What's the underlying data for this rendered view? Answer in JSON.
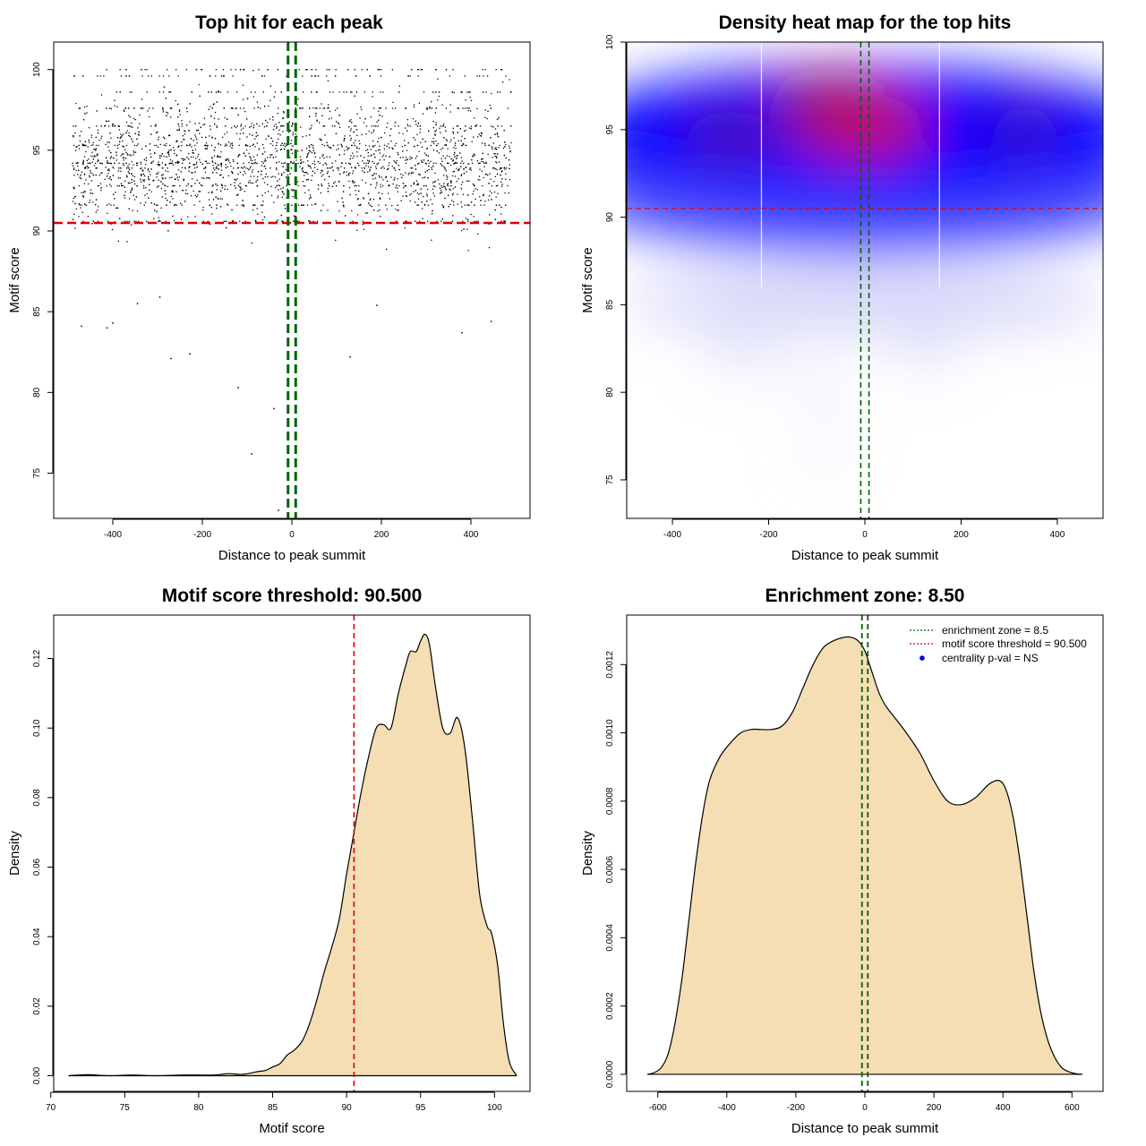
{
  "chart_data": [
    {
      "id": "scatter",
      "type": "scatter",
      "title": "Top hit for each peak",
      "xlabel": "Distance to peak summit",
      "ylabel": "Motif score",
      "xlim": [
        -532,
        532
      ],
      "ylim": [
        72.2,
        101.7
      ],
      "xticks": [
        -400,
        -200,
        0,
        200,
        400
      ],
      "yticks": [
        75,
        80,
        85,
        90,
        95,
        100
      ],
      "n_points": 3200,
      "x_range": [
        -490,
        490
      ],
      "score_levels": [
        100,
        99.6,
        98.6,
        97.6,
        96.5,
        95.3,
        94.2,
        93.9,
        92.8,
        91.6,
        90.6
      ],
      "outliers": [
        [
          -470,
          84.1
        ],
        [
          -413,
          84.0
        ],
        [
          -400,
          84.3
        ],
        [
          -345,
          85.5
        ],
        [
          -295,
          85.9
        ],
        [
          -270,
          82.1
        ],
        [
          -228,
          82.4
        ],
        [
          -120,
          80.3
        ],
        [
          -90,
          76.2
        ],
        [
          -30,
          72.7
        ],
        [
          -40,
          79.0
        ],
        [
          130,
          82.2
        ],
        [
          190,
          85.4
        ],
        [
          380,
          83.7
        ],
        [
          445,
          84.4
        ]
      ],
      "threshold_score": 90.5,
      "threshold_color": "#dd0000",
      "zone_center": 0,
      "zone_half_width": 8.5,
      "zone_color": "#006400"
    },
    {
      "id": "heatmap",
      "type": "heatmap",
      "title": "Density heat map for the top hits",
      "xlabel": "Distance to peak summit",
      "ylabel": "Motif score",
      "xlim": [
        -495,
        495
      ],
      "ylim": [
        72.8,
        100
      ],
      "xticks": [
        -400,
        -200,
        0,
        200,
        400
      ],
      "yticks": [
        75,
        80,
        85,
        90,
        95,
        100
      ],
      "threshold_score": 90.5,
      "zone_half_width": 8.5,
      "color_scale": [
        "#ffffff",
        "#0000ff",
        "#cc0022"
      ]
    },
    {
      "id": "score_density",
      "type": "area",
      "title": "Motif score threshold: 90.500",
      "xlabel": "Motif score",
      "ylabel": "Density",
      "xlim": [
        70.2,
        102.4
      ],
      "ylim": [
        -0.0045,
        0.1325
      ],
      "xticks": [
        70,
        75,
        80,
        85,
        90,
        95,
        100
      ],
      "yticks": [
        0.0,
        0.02,
        0.04,
        0.06,
        0.08,
        0.1,
        0.12
      ],
      "ytick_labels": [
        "0.00",
        "0.02",
        "0.04",
        "0.06",
        "0.08",
        "0.10",
        "0.12"
      ],
      "x": [
        71.2,
        72.5,
        74,
        75.5,
        77,
        79,
        81,
        82,
        83,
        84,
        84.5,
        85,
        85.5,
        86,
        86.5,
        87,
        87.5,
        88,
        88.5,
        89,
        89.5,
        90,
        90.5,
        91,
        91.5,
        92,
        92.5,
        93,
        93.5,
        94,
        94.3,
        94.7,
        95,
        95.3,
        95.6,
        96,
        96.5,
        97,
        97.5,
        98,
        98.5,
        99,
        99.5,
        99.8,
        100.2,
        100.6,
        101,
        101.5
      ],
      "y": [
        0,
        0.0003,
        0,
        0.0002,
        0,
        0.0002,
        0.0002,
        0.0006,
        0.0004,
        0.0012,
        0.0015,
        0.0025,
        0.0035,
        0.006,
        0.0075,
        0.01,
        0.015,
        0.022,
        0.03,
        0.037,
        0.045,
        0.058,
        0.07,
        0.082,
        0.092,
        0.1,
        0.101,
        0.1,
        0.11,
        0.118,
        0.122,
        0.122,
        0.125,
        0.127,
        0.124,
        0.112,
        0.1,
        0.0985,
        0.103,
        0.094,
        0.074,
        0.052,
        0.043,
        0.041,
        0.032,
        0.015,
        0.004,
        0
      ],
      "fill_color": "#f5deb3",
      "threshold_score": 90.5,
      "threshold_color": "#dd0000"
    },
    {
      "id": "distance_density",
      "type": "area",
      "title": "Enrichment zone: 8.50",
      "xlabel": "Distance to peak summit",
      "ylabel": "Density",
      "xlim": [
        -690,
        690
      ],
      "ylim": [
        -5e-05,
        0.001345
      ],
      "xticks": [
        -600,
        -400,
        -200,
        0,
        200,
        400,
        600
      ],
      "yticks": [
        0,
        0.0002,
        0.0004,
        0.0006,
        0.0008,
        0.001,
        0.0012
      ],
      "ytick_labels": [
        "0.0000",
        "0.0002",
        "0.0004",
        "0.0006",
        "0.0008",
        "0.0010",
        "0.0012"
      ],
      "x": [
        -630,
        -610,
        -590,
        -570,
        -550,
        -530,
        -510,
        -490,
        -470,
        -450,
        -420,
        -390,
        -360,
        -330,
        -300,
        -270,
        -240,
        -210,
        -180,
        -150,
        -120,
        -90,
        -60,
        -40,
        -20,
        0,
        20,
        40,
        60,
        90,
        120,
        160,
        200,
        240,
        280,
        320,
        360,
        390,
        410,
        430,
        450,
        470,
        490,
        510,
        530,
        550,
        570,
        590,
        610,
        630
      ],
      "y": [
        0,
        5e-06,
        2e-05,
        6e-05,
        0.00015,
        0.00028,
        0.00045,
        0.00062,
        0.00076,
        0.00086,
        0.00093,
        0.00097,
        0.001,
        0.00101,
        0.00101,
        0.00101,
        0.00102,
        0.00106,
        0.00113,
        0.0012,
        0.00125,
        0.00127,
        0.00128,
        0.00128,
        0.00127,
        0.00124,
        0.00118,
        0.00112,
        0.00108,
        0.00104,
        0.001,
        0.00094,
        0.00086,
        0.0008,
        0.00079,
        0.00081,
        0.00085,
        0.00086,
        0.00083,
        0.00075,
        0.00062,
        0.00046,
        0.0003,
        0.00018,
        0.0001,
        5e-05,
        2e-05,
        8e-06,
        2e-06,
        0
      ],
      "fill_color": "#f5deb3",
      "zone_half_width": 8.5,
      "zone_color": "#006400",
      "legend": {
        "position": "top-right",
        "items": [
          {
            "label": "enrichment zone = 8.5",
            "color": "#006400",
            "style": "dotted-line"
          },
          {
            "label": "motif score threshold = 90.500",
            "color": "#dd0000",
            "style": "dotted-line"
          },
          {
            "label": "centrality p-val = NS",
            "color": "#0000ee",
            "style": "point"
          }
        ]
      }
    }
  ]
}
